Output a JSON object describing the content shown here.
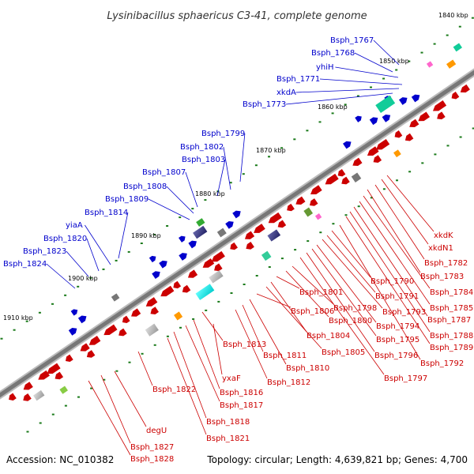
{
  "title": "Lysinibacillus sphaericus C3-41, complete genome",
  "footer": {
    "accession": "Accession: NC_010382",
    "topology": "Topology: circular; Length: 4,639,821 bp; Genes: 4,700"
  },
  "colors": {
    "forward": "#0000cc",
    "reverse": "#cc0000",
    "backbone": "#888888",
    "tick": "#1a7a1a"
  },
  "kbp_marks": [
    "1840 kbp",
    "1850 kbp",
    "1860 kbp",
    "1870 kbp",
    "1880 kbp",
    "1890 kbp",
    "1900 kbp",
    "1910 kbp"
  ],
  "forward_labels": [
    "Bsph_1767",
    "Bsph_1768",
    "yhiH",
    "Bsph_1771",
    "xkdA",
    "Bsph_1773",
    "Bsph_1799",
    "Bsph_1802",
    "Bsph_1803",
    "Bsph_1807",
    "Bsph_1808",
    "Bsph_1809",
    "Bsph_1814",
    "yiaA",
    "Bsph_1820",
    "Bsph_1823",
    "Bsph_1824"
  ],
  "reverse_labels": [
    "xkdK",
    "xkdN1",
    "Bsph_1782",
    "Bsph_1783",
    "Bsph_1784",
    "Bsph_1785",
    "Bsph_1787",
    "Bsph_1788",
    "Bsph_1789",
    "Bsph_1792",
    "Bsph_1790",
    "Bsph_1791",
    "Bsph_1793",
    "Bsph_1794",
    "Bsph_1795",
    "Bsph_1796",
    "Bsph_1797",
    "Bsph_1798",
    "Bsph_1800",
    "Bsph_1801",
    "Bsph_1804",
    "Bsph_1805",
    "Bsph_1806",
    "Bsph_1810",
    "Bsph_1811",
    "Bsph_1812",
    "Bsph_1813",
    "Bsph_1816",
    "Bsph_1817",
    "Bsph_1818",
    "Bsph_1821",
    "Bsph_1822",
    "yxaF",
    "degU",
    "Bsph_1827",
    "Bsph_1828"
  ]
}
